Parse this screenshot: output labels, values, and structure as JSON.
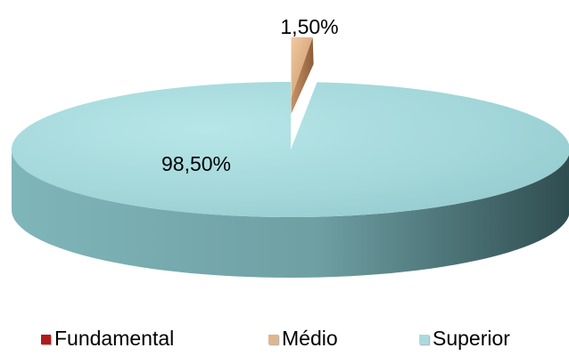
{
  "chart_data": {
    "type": "pie",
    "title": "",
    "categories": [
      "Fundamental",
      "Médio",
      "Superior"
    ],
    "values": [
      0,
      1.5,
      98.5
    ],
    "value_labels": [
      "",
      "1,50%",
      "98,50%"
    ],
    "colors": [
      "#b01b1b",
      "#e2b48c",
      "#a9dbde"
    ],
    "legend_position": "bottom",
    "three_d": true,
    "exploded_slice": "Médio"
  },
  "legend": {
    "items": [
      {
        "label": "Fundamental",
        "color": "#b01b1b"
      },
      {
        "label": "Médio",
        "color": "#e2b48c"
      },
      {
        "label": "Superior",
        "color": "#a9dbde"
      }
    ]
  }
}
